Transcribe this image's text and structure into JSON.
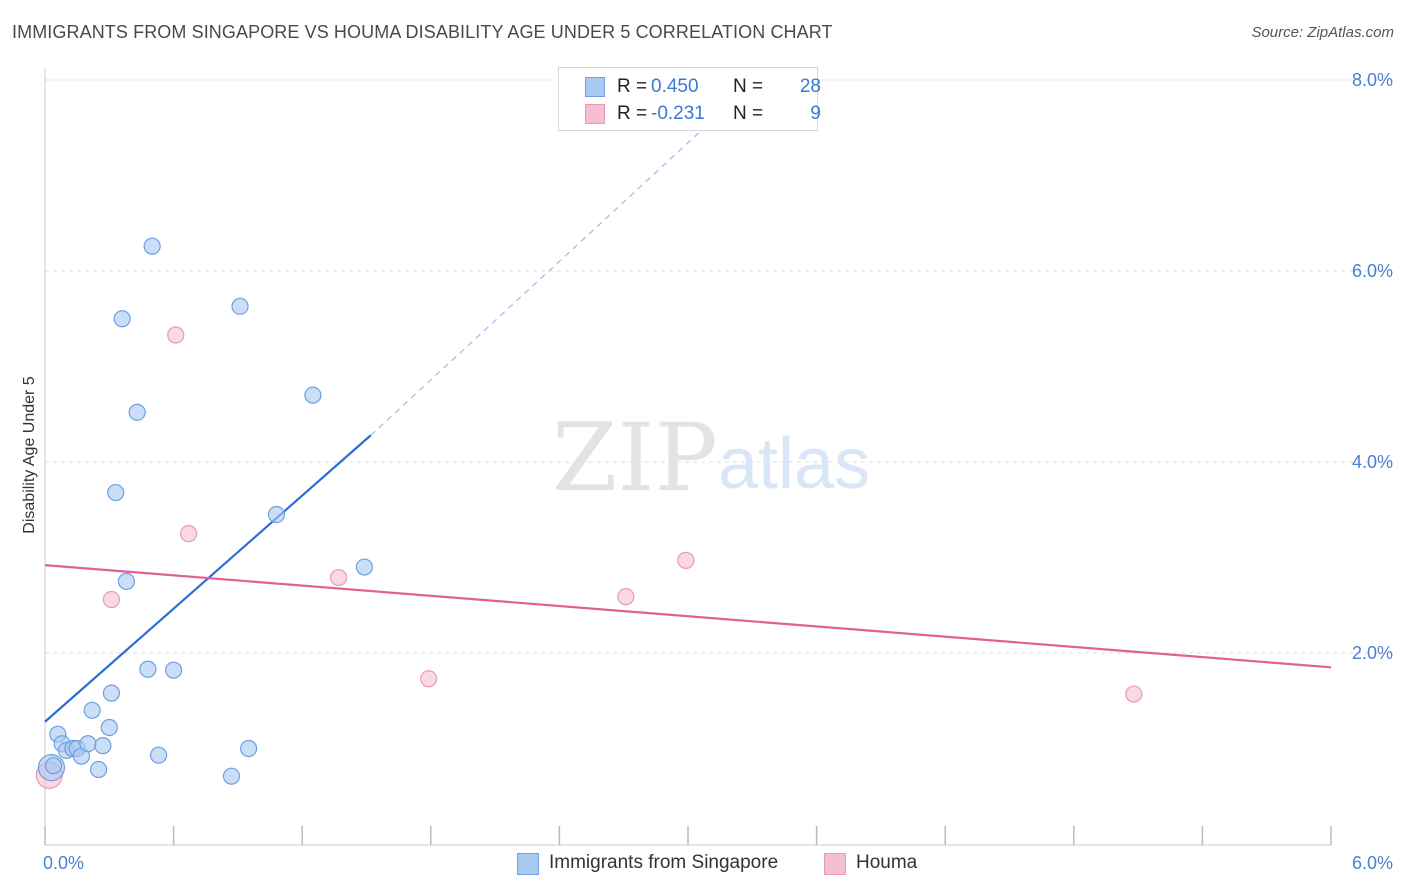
{
  "header": {
    "title": "IMMIGRANTS FROM SINGAPORE VS HOUMA DISABILITY AGE UNDER 5 CORRELATION CHART",
    "source": "Source: ZipAtlas.com"
  },
  "watermark": {
    "zip": "ZIP",
    "atlas": "atlas"
  },
  "legend": {
    "rows": [
      {
        "r_label": "R =",
        "r_value": "0.450",
        "n_label": "N =",
        "n_value": "28",
        "color": "#a9c8f2",
        "border": "#6f9fe0"
      },
      {
        "r_label": "R =",
        "r_value": "-0.231",
        "n_label": "N =",
        "n_value": "9",
        "color": "#f6bfd0",
        "border": "#e99ab3"
      }
    ]
  },
  "bottom_legend": {
    "singapore": "Immigrants from Singapore",
    "houma": "Houma"
  },
  "colors": {
    "singapore_fill": "#a9c8f2",
    "singapore_stroke": "#6f9fe0",
    "singapore_line": "#2a6fd6",
    "houma_fill": "#f6bfd0",
    "houma_stroke": "#e99ab3",
    "houma_line": "#e0608e",
    "grid": "#dcdcdc",
    "tick_text": "#4a7fd4"
  },
  "chart_data": {
    "type": "scatter",
    "title": "IMMIGRANTS FROM SINGAPORE VS HOUMA DISABILITY AGE UNDER 5 CORRELATION CHART",
    "xlabel": "",
    "ylabel": "Disability Age Under 5",
    "xlim": [
      0,
      6
    ],
    "ylim": [
      0,
      8.2
    ],
    "x_tick_labels": [
      "0.0%",
      "6.0%"
    ],
    "y_ticks": [
      {
        "value": 2,
        "label": "2.0%"
      },
      {
        "value": 4,
        "label": "4.0%"
      },
      {
        "value": 6,
        "label": "6.0%"
      },
      {
        "value": 8,
        "label": "8.0%"
      }
    ],
    "grid": "horizontal dashed",
    "legend_position": "top-center",
    "series": [
      {
        "name": "Immigrants from Singapore",
        "points": [
          {
            "x": 0.03,
            "y": 0.8,
            "big": true
          },
          {
            "x": 0.06,
            "y": 1.15
          },
          {
            "x": 0.08,
            "y": 1.05
          },
          {
            "x": 0.1,
            "y": 0.98
          },
          {
            "x": 0.13,
            "y": 1.0
          },
          {
            "x": 0.15,
            "y": 1.0
          },
          {
            "x": 0.17,
            "y": 0.92
          },
          {
            "x": 0.2,
            "y": 1.05
          },
          {
            "x": 0.22,
            "y": 1.4
          },
          {
            "x": 0.25,
            "y": 0.78
          },
          {
            "x": 0.27,
            "y": 1.03
          },
          {
            "x": 0.3,
            "y": 1.22
          },
          {
            "x": 0.31,
            "y": 1.58
          },
          {
            "x": 0.33,
            "y": 3.68
          },
          {
            "x": 0.36,
            "y": 5.5
          },
          {
            "x": 0.38,
            "y": 2.75
          },
          {
            "x": 0.43,
            "y": 4.52
          },
          {
            "x": 0.48,
            "y": 1.83
          },
          {
            "x": 0.5,
            "y": 6.26
          },
          {
            "x": 0.53,
            "y": 0.93
          },
          {
            "x": 0.6,
            "y": 1.82
          },
          {
            "x": 0.87,
            "y": 0.71
          },
          {
            "x": 0.91,
            "y": 5.63
          },
          {
            "x": 0.95,
            "y": 1.0
          },
          {
            "x": 1.08,
            "y": 3.45
          },
          {
            "x": 1.25,
            "y": 4.7
          },
          {
            "x": 1.49,
            "y": 2.9
          },
          {
            "x": 0.04,
            "y": 0.82
          }
        ],
        "trend": {
          "x0": 0.0,
          "y0": 1.28,
          "x1": 1.52,
          "y1": 4.28,
          "dashed_to_x": 3.1,
          "dashed_to_y": 7.55
        }
      },
      {
        "name": "Houma",
        "points": [
          {
            "x": 0.02,
            "y": 0.72,
            "big": true
          },
          {
            "x": 0.31,
            "y": 2.56
          },
          {
            "x": 0.61,
            "y": 5.33
          },
          {
            "x": 0.67,
            "y": 3.25
          },
          {
            "x": 1.37,
            "y": 2.79
          },
          {
            "x": 1.79,
            "y": 1.73
          },
          {
            "x": 2.71,
            "y": 2.59
          },
          {
            "x": 2.99,
            "y": 2.97
          },
          {
            "x": 5.08,
            "y": 1.57
          }
        ],
        "trend": {
          "x0": 0.0,
          "y0": 2.92,
          "x1": 6.0,
          "y1": 1.85
        }
      }
    ]
  }
}
